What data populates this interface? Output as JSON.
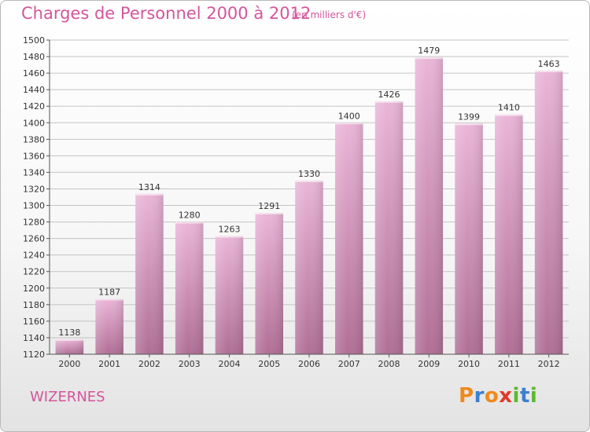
{
  "title": "Charges de Personnel 2000 à 2012",
  "subtitle": "(en milliers d'€)",
  "commune": "WIZERNES",
  "logo": {
    "letters": [
      {
        "ch": "P",
        "color": "#f08a1c"
      },
      {
        "ch": "r",
        "color": "#3a7fd0"
      },
      {
        "ch": "o",
        "color": "#f08a1c"
      },
      {
        "ch": "x",
        "color": "#e03a2a"
      },
      {
        "ch": "i",
        "color": "#5cb82e"
      },
      {
        "ch": "t",
        "color": "#3a7fd0"
      },
      {
        "ch": "i",
        "color": "#5cb82e"
      }
    ]
  },
  "colors": {
    "bar_light": "#eab5d7",
    "bar_dark": "#b06f95",
    "accent": "#d5559b",
    "grid": "#c4c4c4"
  },
  "chart_data": {
    "type": "bar",
    "categories": [
      "2000",
      "2001",
      "2002",
      "2003",
      "2004",
      "2005",
      "2006",
      "2007",
      "2008",
      "2009",
      "2010",
      "2011",
      "2012"
    ],
    "values": [
      1138,
      1187,
      1314,
      1280,
      1263,
      1291,
      1330,
      1400,
      1426,
      1479,
      1399,
      1410,
      1463
    ],
    "ylim": [
      1120,
      1500
    ],
    "yticks": [
      1120,
      1140,
      1160,
      1180,
      1200,
      1220,
      1240,
      1260,
      1280,
      1300,
      1320,
      1340,
      1360,
      1380,
      1400,
      1420,
      1440,
      1460,
      1480,
      1500
    ],
    "grid": true
  }
}
